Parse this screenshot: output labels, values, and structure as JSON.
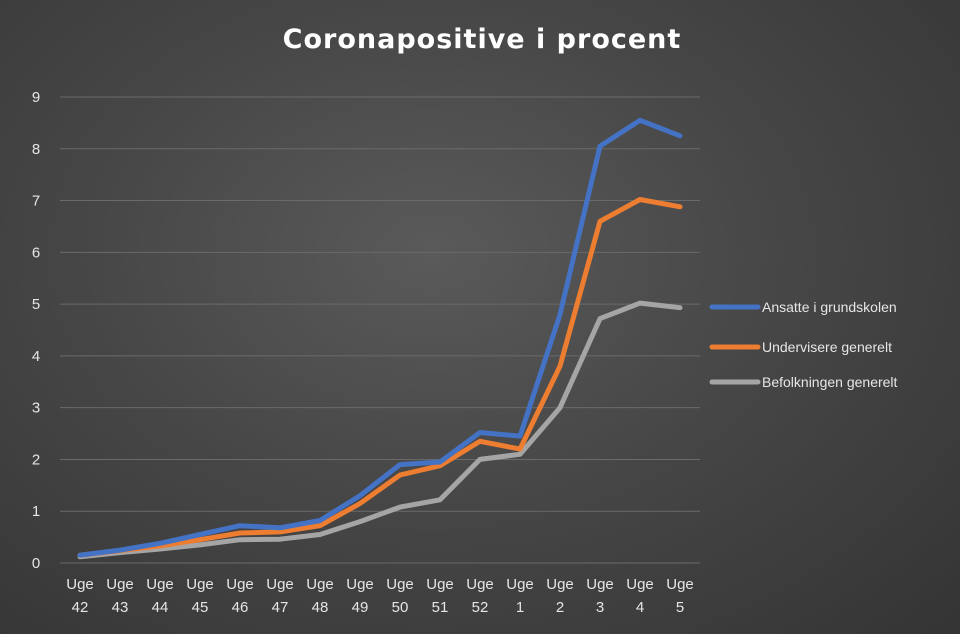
{
  "chart_data": {
    "type": "line",
    "title": "Coronapositive  i procent",
    "categories": [
      [
        "Uge",
        "42"
      ],
      [
        "Uge",
        "43"
      ],
      [
        "Uge",
        "44"
      ],
      [
        "Uge",
        "45"
      ],
      [
        "Uge",
        "46"
      ],
      [
        "Uge",
        "47"
      ],
      [
        "Uge",
        "48"
      ],
      [
        "Uge",
        "49"
      ],
      [
        "Uge",
        "50"
      ],
      [
        "Uge",
        "51"
      ],
      [
        "Uge",
        "52"
      ],
      [
        "Uge",
        "1"
      ],
      [
        "Uge",
        "2"
      ],
      [
        "Uge",
        "3"
      ],
      [
        "Uge",
        "4"
      ],
      [
        "Uge",
        "5"
      ]
    ],
    "ylim": [
      0,
      9
    ],
    "yticks": [
      0,
      1,
      2,
      3,
      4,
      5,
      6,
      7,
      8,
      9
    ],
    "grid": true,
    "legend_position": "right",
    "series": [
      {
        "name": "Ansatte i grundskolen",
        "color": "#4472c4",
        "values": [
          0.15,
          0.25,
          0.38,
          0.55,
          0.72,
          0.68,
          0.82,
          1.3,
          1.9,
          1.95,
          2.52,
          2.45,
          4.8,
          8.05,
          8.55,
          8.25
        ]
      },
      {
        "name": "Undervisere generelt",
        "color": "#ed7d31",
        "values": [
          0.15,
          0.24,
          0.33,
          0.45,
          0.58,
          0.6,
          0.72,
          1.15,
          1.7,
          1.88,
          2.35,
          2.2,
          3.8,
          6.6,
          7.02,
          6.88
        ]
      },
      {
        "name": "Befolkningen generelt",
        "color": "#a5a5a5",
        "values": [
          0.12,
          0.2,
          0.27,
          0.35,
          0.45,
          0.46,
          0.55,
          0.8,
          1.08,
          1.22,
          2.0,
          2.1,
          3.0,
          4.72,
          5.02,
          4.93
        ]
      }
    ]
  }
}
